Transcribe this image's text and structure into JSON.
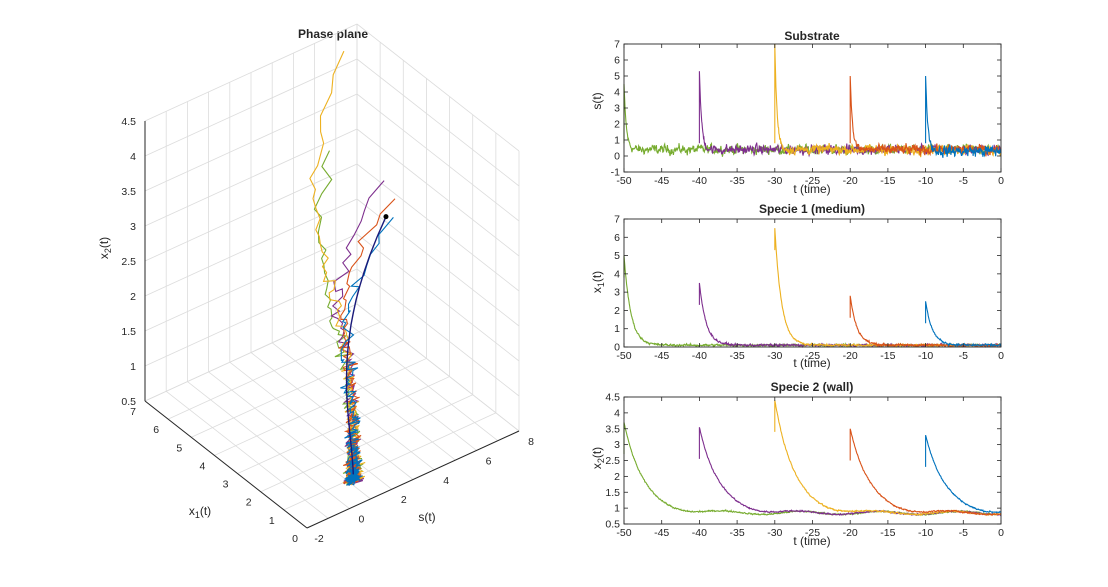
{
  "colors": {
    "blue": "#0072BD",
    "orange": "#D95319",
    "yellow": "#EDB120",
    "purple": "#7E2F8E",
    "green": "#77AC30",
    "navy": "#1a1a7a"
  },
  "chart_data": [
    {
      "type": "line3d",
      "title": "Phase plane",
      "axes": {
        "s": "s(t)",
        "x1": "x",
        "x1_sub": "1",
        "x1_tail": "(t)",
        "x2": "x",
        "x2_sub": "2",
        "x2_tail": "(t)"
      },
      "s_ticks": [
        "-2",
        "0",
        "2",
        "4",
        "6",
        "8"
      ],
      "x1_ticks": [
        "0",
        "1",
        "2",
        "3",
        "4",
        "5",
        "6",
        "7"
      ],
      "x2_ticks": [
        "0.5",
        "1",
        "1.5",
        "2",
        "2.5",
        "3",
        "3.5",
        "4",
        "4.5"
      ],
      "slim": [
        -2,
        8
      ],
      "x1lim": [
        0,
        7
      ],
      "x2lim": [
        0.5,
        4.5
      ],
      "equilibrium": {
        "s": 0.3,
        "x1": 0.1,
        "x2": 0.8
      }
    },
    {
      "type": "line",
      "title": "Substrate",
      "ylabel": "s(t)",
      "xlabel": "t (time)",
      "xlim": [
        -50,
        0
      ],
      "ylim": [
        -1,
        7
      ],
      "yticks": [
        "-1",
        "0",
        "1",
        "2",
        "3",
        "4",
        "5",
        "6",
        "7"
      ],
      "xticks": [
        "-50",
        "-45",
        "-40",
        "-35",
        "-30",
        "-25",
        "-20",
        "-15",
        "-10",
        "-5",
        "0"
      ],
      "series": [
        {
          "name": "green",
          "start": -50,
          "peak": 4.5,
          "base": 0.4,
          "noise": 0.25,
          "tau": 0.3
        },
        {
          "name": "purple",
          "start": -40,
          "peak": 5.3,
          "base": 0.4,
          "noise": 0.25,
          "tau": 0.3
        },
        {
          "name": "yellow",
          "start": -30,
          "peak": 7.0,
          "base": 0.4,
          "noise": 0.25,
          "tau": 0.3
        },
        {
          "name": "orange",
          "start": -20,
          "peak": 5.0,
          "base": 0.4,
          "noise": 0.25,
          "tau": 0.3
        },
        {
          "name": "blue",
          "start": -10,
          "peak": 5.0,
          "base": 0.3,
          "noise": 0.3,
          "tau": 0.3
        }
      ]
    },
    {
      "type": "line",
      "title": "Specie 1 (medium)",
      "ylabel": "x",
      "ylabel_sub": "1",
      "ylabel_tail": "(t)",
      "xlabel": "t (time)",
      "xlim": [
        -50,
        0
      ],
      "ylim": [
        0,
        7
      ],
      "yticks": [
        "0",
        "1",
        "2",
        "3",
        "4",
        "5",
        "6",
        "7"
      ],
      "xticks": [
        "-50",
        "-45",
        "-40",
        "-35",
        "-30",
        "-25",
        "-20",
        "-15",
        "-10",
        "-5",
        "0"
      ],
      "series": [
        {
          "name": "green",
          "start": -50,
          "peak": 5.0,
          "base": 0.1,
          "noise": 0.05,
          "tau": 0.9
        },
        {
          "name": "purple",
          "start": -40,
          "peak": 3.5,
          "base": 0.1,
          "noise": 0.05,
          "tau": 0.9
        },
        {
          "name": "yellow",
          "start": -30,
          "peak": 6.5,
          "base": 0.1,
          "noise": 0.05,
          "tau": 0.9
        },
        {
          "name": "orange",
          "start": -20,
          "peak": 2.8,
          "base": 0.1,
          "noise": 0.05,
          "tau": 0.9
        },
        {
          "name": "blue",
          "start": -10,
          "peak": 2.5,
          "base": 0.1,
          "noise": 0.05,
          "tau": 0.9
        }
      ]
    },
    {
      "type": "line",
      "title": "Specie 2 (wall)",
      "ylabel": "x",
      "ylabel_sub": "2",
      "ylabel_tail": "(t)",
      "xlabel": "t (time)",
      "xlim": [
        -50,
        0
      ],
      "ylim": [
        0.5,
        4.5
      ],
      "yticks": [
        "0.5",
        "1",
        "1.5",
        "2",
        "2.5",
        "3",
        "3.5",
        "4",
        "4.5"
      ],
      "xticks": [
        "-50",
        "-45",
        "-40",
        "-35",
        "-30",
        "-25",
        "-20",
        "-15",
        "-10",
        "-5",
        "0"
      ],
      "series": [
        {
          "name": "green",
          "start": -50,
          "peak": 3.7,
          "base": 0.85,
          "noise": 0.02,
          "tau": 2.5
        },
        {
          "name": "purple",
          "start": -40,
          "peak": 3.55,
          "base": 0.85,
          "noise": 0.02,
          "tau": 2.5
        },
        {
          "name": "yellow",
          "start": -30,
          "peak": 4.4,
          "base": 0.85,
          "noise": 0.02,
          "tau": 2.5
        },
        {
          "name": "orange",
          "start": -20,
          "peak": 3.5,
          "base": 0.85,
          "noise": 0.02,
          "tau": 2.5
        },
        {
          "name": "blue",
          "start": -10,
          "peak": 3.3,
          "base": 0.85,
          "noise": 0.02,
          "tau": 2.5
        }
      ]
    }
  ]
}
